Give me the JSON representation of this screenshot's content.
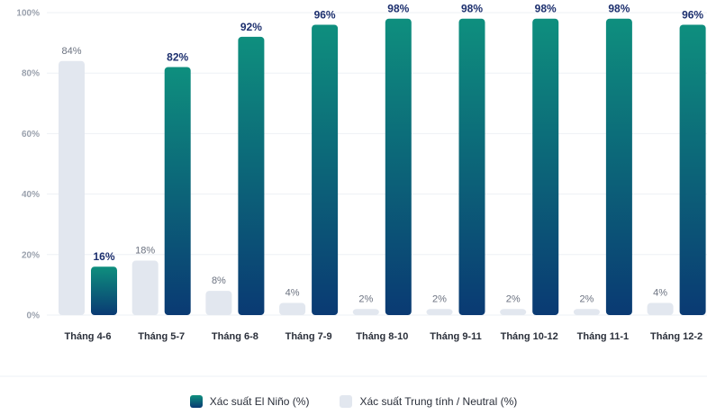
{
  "chart_data": {
    "type": "bar",
    "categories": [
      "Tháng 4-6",
      "Tháng 5-7",
      "Tháng 6-8",
      "Tháng 7-9",
      "Tháng 8-10",
      "Tháng 9-11",
      "Tháng 10-12",
      "Tháng 11-1",
      "Tháng 12-2"
    ],
    "series": [
      {
        "name": "Xác suất Trung tính / Neutral (%)",
        "values": [
          84,
          18,
          8,
          4,
          2,
          2,
          2,
          2,
          4
        ],
        "labels": [
          "84%",
          "18%",
          "8%",
          "4%",
          "2%",
          "2%",
          "2%",
          "2%",
          "4%"
        ],
        "color": "#e2e7ef"
      },
      {
        "name": "Xác suất El Niño (%)",
        "values": [
          16,
          82,
          92,
          96,
          98,
          98,
          98,
          98,
          96
        ],
        "labels": [
          "16%",
          "82%",
          "92%",
          "96%",
          "98%",
          "98%",
          "98%",
          "98%",
          "96%"
        ],
        "color_top": "#0e8f7e",
        "color_bottom": "#0a3a73"
      }
    ],
    "y_ticks": [
      "0%",
      "20%",
      "40%",
      "60%",
      "80%",
      "100%"
    ],
    "ylim": [
      0,
      100
    ],
    "grid": true,
    "legend_position": "bottom-center"
  }
}
